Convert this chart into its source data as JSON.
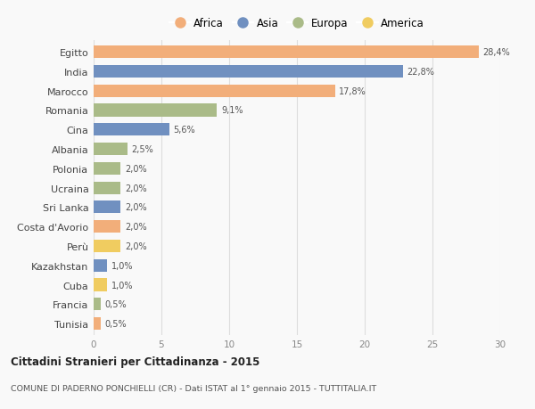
{
  "countries": [
    "Egitto",
    "India",
    "Marocco",
    "Romania",
    "Cina",
    "Albania",
    "Polonia",
    "Ucraina",
    "Sri Lanka",
    "Costa d'Avorio",
    "Perù",
    "Kazakhstan",
    "Cuba",
    "Francia",
    "Tunisia"
  ],
  "values": [
    28.4,
    22.8,
    17.8,
    9.1,
    5.6,
    2.5,
    2.0,
    2.0,
    2.0,
    2.0,
    2.0,
    1.0,
    1.0,
    0.5,
    0.5
  ],
  "labels": [
    "28,4%",
    "22,8%",
    "17,8%",
    "9,1%",
    "5,6%",
    "2,5%",
    "2,0%",
    "2,0%",
    "2,0%",
    "2,0%",
    "2,0%",
    "1,0%",
    "1,0%",
    "0,5%",
    "0,5%"
  ],
  "continents": [
    "Africa",
    "Asia",
    "Africa",
    "Europa",
    "Asia",
    "Europa",
    "Europa",
    "Europa",
    "Asia",
    "Africa",
    "America",
    "Asia",
    "America",
    "Europa",
    "Africa"
  ],
  "colors": {
    "Africa": "#F2AE7A",
    "Asia": "#7090C0",
    "Europa": "#AABB88",
    "America": "#F0CC60"
  },
  "legend_order": [
    "Africa",
    "Asia",
    "Europa",
    "America"
  ],
  "title": "Cittadini Stranieri per Cittadinanza - 2015",
  "subtitle": "COMUNE DI PADERNO PONCHIELLI (CR) - Dati ISTAT al 1° gennaio 2015 - TUTTITALIA.IT",
  "xlim": [
    0,
    30
  ],
  "xticks": [
    0,
    5,
    10,
    15,
    20,
    25,
    30
  ],
  "background_color": "#f9f9f9",
  "bar_height": 0.65,
  "grid_color": "#dddddd"
}
